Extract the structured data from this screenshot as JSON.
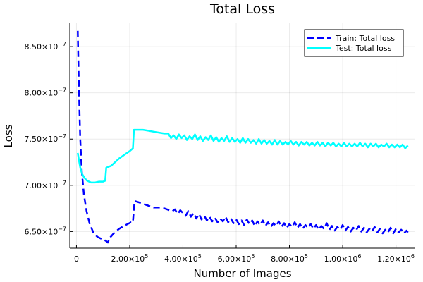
{
  "chart_data": {
    "type": "line",
    "title": "Total Loss",
    "xlabel": "Number of Images",
    "ylabel": "Loss",
    "xlim": [
      -25000,
      1270000
    ],
    "ylim": [
      6.32e-07,
      8.76e-07
    ],
    "x_ticks": [
      {
        "value": 0,
        "mantissa": "0",
        "exponent": ""
      },
      {
        "value": 200000,
        "mantissa": "2.00×10",
        "exponent": "5"
      },
      {
        "value": 400000,
        "mantissa": "4.00×10",
        "exponent": "5"
      },
      {
        "value": 600000,
        "mantissa": "6.00×10",
        "exponent": "5"
      },
      {
        "value": 800000,
        "mantissa": "8.00×10",
        "exponent": "5"
      },
      {
        "value": 1000000,
        "mantissa": "1.00×10",
        "exponent": "6"
      },
      {
        "value": 1200000,
        "mantissa": "1.20×10",
        "exponent": "6"
      }
    ],
    "y_ticks": [
      {
        "value": 6.5e-07,
        "mantissa": "6.50×10",
        "exponent": "−7"
      },
      {
        "value": 7e-07,
        "mantissa": "7.00×10",
        "exponent": "−7"
      },
      {
        "value": 7.5e-07,
        "mantissa": "7.50×10",
        "exponent": "−7"
      },
      {
        "value": 8e-07,
        "mantissa": "8.00×10",
        "exponent": "−7"
      },
      {
        "value": 8.5e-07,
        "mantissa": "8.50×10",
        "exponent": "−7"
      }
    ],
    "grid": true,
    "legend_position": "top-right",
    "series": [
      {
        "name": "Train: Total loss",
        "color": "#0000ff",
        "style": "dashed",
        "points": [
          [
            5000,
            8.67e-07
          ],
          [
            9000,
            8.1e-07
          ],
          [
            14000,
            7.52e-07
          ],
          [
            20000,
            7.15e-07
          ],
          [
            28000,
            6.9e-07
          ],
          [
            38000,
            6.72e-07
          ],
          [
            50000,
            6.58e-07
          ],
          [
            65000,
            6.48e-07
          ],
          [
            80000,
            6.44e-07
          ],
          [
            95000,
            6.42e-07
          ],
          [
            110000,
            6.4e-07
          ],
          [
            118000,
            6.38e-07
          ],
          [
            125000,
            6.43e-07
          ],
          [
            140000,
            6.48e-07
          ],
          [
            160000,
            6.53e-07
          ],
          [
            185000,
            6.57e-07
          ],
          [
            205000,
            6.6e-07
          ],
          [
            212000,
            6.6e-07
          ],
          [
            218000,
            6.83e-07
          ],
          [
            230000,
            6.82e-07
          ],
          [
            250000,
            6.8e-07
          ],
          [
            270000,
            6.78e-07
          ],
          [
            290000,
            6.76e-07
          ],
          [
            310000,
            6.76e-07
          ],
          [
            330000,
            6.75e-07
          ],
          [
            350000,
            6.73e-07
          ],
          [
            360000,
            6.72e-07
          ],
          [
            370000,
            6.74e-07
          ],
          [
            380000,
            6.69e-07
          ],
          [
            390000,
            6.73e-07
          ],
          [
            400000,
            6.7e-07
          ],
          [
            410000,
            6.67e-07
          ],
          [
            420000,
            6.72e-07
          ],
          [
            430000,
            6.66e-07
          ],
          [
            440000,
            6.7e-07
          ],
          [
            450000,
            6.64e-07
          ],
          [
            460000,
            6.69e-07
          ],
          [
            470000,
            6.63e-07
          ],
          [
            480000,
            6.67e-07
          ],
          [
            490000,
            6.62e-07
          ],
          [
            500000,
            6.66e-07
          ],
          [
            510000,
            6.61e-07
          ],
          [
            520000,
            6.65e-07
          ],
          [
            530000,
            6.6e-07
          ],
          [
            540000,
            6.64e-07
          ],
          [
            550000,
            6.61e-07
          ],
          [
            560000,
            6.66e-07
          ],
          [
            570000,
            6.6e-07
          ],
          [
            580000,
            6.64e-07
          ],
          [
            590000,
            6.59e-07
          ],
          [
            600000,
            6.63e-07
          ],
          [
            610000,
            6.58e-07
          ],
          [
            620000,
            6.62e-07
          ],
          [
            630000,
            6.57e-07
          ],
          [
            640000,
            6.63e-07
          ],
          [
            650000,
            6.58e-07
          ],
          [
            660000,
            6.62e-07
          ],
          [
            670000,
            6.56e-07
          ],
          [
            680000,
            6.61e-07
          ],
          [
            690000,
            6.57e-07
          ],
          [
            700000,
            6.62e-07
          ],
          [
            710000,
            6.56e-07
          ],
          [
            720000,
            6.6e-07
          ],
          [
            730000,
            6.55e-07
          ],
          [
            740000,
            6.59e-07
          ],
          [
            750000,
            6.56e-07
          ],
          [
            760000,
            6.61e-07
          ],
          [
            770000,
            6.55e-07
          ],
          [
            780000,
            6.59e-07
          ],
          [
            790000,
            6.54e-07
          ],
          [
            800000,
            6.58e-07
          ],
          [
            810000,
            6.55e-07
          ],
          [
            820000,
            6.6e-07
          ],
          [
            830000,
            6.54e-07
          ],
          [
            840000,
            6.58e-07
          ],
          [
            850000,
            6.53e-07
          ],
          [
            860000,
            6.57e-07
          ],
          [
            870000,
            6.54e-07
          ],
          [
            880000,
            6.58e-07
          ],
          [
            890000,
            6.53e-07
          ],
          [
            900000,
            6.57e-07
          ],
          [
            910000,
            6.52e-07
          ],
          [
            920000,
            6.56e-07
          ],
          [
            930000,
            6.53e-07
          ],
          [
            940000,
            6.59e-07
          ],
          [
            950000,
            6.52e-07
          ],
          [
            960000,
            6.56e-07
          ],
          [
            970000,
            6.51e-07
          ],
          [
            980000,
            6.55e-07
          ],
          [
            990000,
            6.52e-07
          ],
          [
            1000000,
            6.57e-07
          ],
          [
            1010000,
            6.51e-07
          ],
          [
            1020000,
            6.55e-07
          ],
          [
            1030000,
            6.5e-07
          ],
          [
            1040000,
            6.54e-07
          ],
          [
            1050000,
            6.51e-07
          ],
          [
            1060000,
            6.56e-07
          ],
          [
            1070000,
            6.5e-07
          ],
          [
            1080000,
            6.54e-07
          ],
          [
            1090000,
            6.49e-07
          ],
          [
            1100000,
            6.53e-07
          ],
          [
            1110000,
            6.5e-07
          ],
          [
            1120000,
            6.55e-07
          ],
          [
            1130000,
            6.49e-07
          ],
          [
            1140000,
            6.53e-07
          ],
          [
            1150000,
            6.48e-07
          ],
          [
            1160000,
            6.52e-07
          ],
          [
            1170000,
            6.49e-07
          ],
          [
            1180000,
            6.54e-07
          ],
          [
            1190000,
            6.48e-07
          ],
          [
            1200000,
            6.53e-07
          ],
          [
            1210000,
            6.49e-07
          ],
          [
            1220000,
            6.52e-07
          ],
          [
            1230000,
            6.48e-07
          ],
          [
            1240000,
            6.51e-07
          ],
          [
            1245000,
            6.49e-07
          ]
        ]
      },
      {
        "name": "Test: Total loss",
        "color": "#00ffff",
        "style": "solid",
        "points": [
          [
            5000,
            7.35e-07
          ],
          [
            10000,
            7.26e-07
          ],
          [
            15000,
            7.18e-07
          ],
          [
            22000,
            7.12e-07
          ],
          [
            30000,
            7.08e-07
          ],
          [
            40000,
            7.05e-07
          ],
          [
            55000,
            7.03e-07
          ],
          [
            70000,
            7.03e-07
          ],
          [
            85000,
            7.04e-07
          ],
          [
            100000,
            7.04e-07
          ],
          [
            108000,
            7.05e-07
          ],
          [
            112000,
            7.19e-07
          ],
          [
            120000,
            7.2e-07
          ],
          [
            130000,
            7.21e-07
          ],
          [
            145000,
            7.25e-07
          ],
          [
            160000,
            7.29e-07
          ],
          [
            180000,
            7.33e-07
          ],
          [
            200000,
            7.37e-07
          ],
          [
            212000,
            7.4e-07
          ],
          [
            216000,
            7.6e-07
          ],
          [
            230000,
            7.6e-07
          ],
          [
            250000,
            7.6e-07
          ],
          [
            270000,
            7.59e-07
          ],
          [
            290000,
            7.58e-07
          ],
          [
            310000,
            7.57e-07
          ],
          [
            330000,
            7.56e-07
          ],
          [
            345000,
            7.56e-07
          ],
          [
            355000,
            7.51e-07
          ],
          [
            365000,
            7.54e-07
          ],
          [
            375000,
            7.5e-07
          ],
          [
            385000,
            7.55e-07
          ],
          [
            395000,
            7.51e-07
          ],
          [
            405000,
            7.54e-07
          ],
          [
            415000,
            7.49e-07
          ],
          [
            425000,
            7.53e-07
          ],
          [
            435000,
            7.5e-07
          ],
          [
            445000,
            7.55e-07
          ],
          [
            455000,
            7.49e-07
          ],
          [
            465000,
            7.53e-07
          ],
          [
            475000,
            7.48e-07
          ],
          [
            485000,
            7.52e-07
          ],
          [
            495000,
            7.49e-07
          ],
          [
            505000,
            7.54e-07
          ],
          [
            515000,
            7.48e-07
          ],
          [
            525000,
            7.52e-07
          ],
          [
            535000,
            7.47e-07
          ],
          [
            545000,
            7.51e-07
          ],
          [
            555000,
            7.48e-07
          ],
          [
            565000,
            7.53e-07
          ],
          [
            575000,
            7.47e-07
          ],
          [
            585000,
            7.51e-07
          ],
          [
            595000,
            7.47e-07
          ],
          [
            605000,
            7.5e-07
          ],
          [
            615000,
            7.46e-07
          ],
          [
            625000,
            7.51e-07
          ],
          [
            635000,
            7.46e-07
          ],
          [
            645000,
            7.5e-07
          ],
          [
            655000,
            7.46e-07
          ],
          [
            665000,
            7.49e-07
          ],
          [
            675000,
            7.45e-07
          ],
          [
            685000,
            7.5e-07
          ],
          [
            695000,
            7.45e-07
          ],
          [
            705000,
            7.49e-07
          ],
          [
            715000,
            7.45e-07
          ],
          [
            725000,
            7.48e-07
          ],
          [
            735000,
            7.44e-07
          ],
          [
            745000,
            7.49e-07
          ],
          [
            755000,
            7.44e-07
          ],
          [
            765000,
            7.48e-07
          ],
          [
            775000,
            7.44e-07
          ],
          [
            785000,
            7.47e-07
          ],
          [
            795000,
            7.44e-07
          ],
          [
            805000,
            7.48e-07
          ],
          [
            815000,
            7.44e-07
          ],
          [
            825000,
            7.47e-07
          ],
          [
            835000,
            7.43e-07
          ],
          [
            845000,
            7.47e-07
          ],
          [
            855000,
            7.44e-07
          ],
          [
            865000,
            7.47e-07
          ],
          [
            875000,
            7.43e-07
          ],
          [
            885000,
            7.46e-07
          ],
          [
            895000,
            7.43e-07
          ],
          [
            905000,
            7.47e-07
          ],
          [
            915000,
            7.43e-07
          ],
          [
            925000,
            7.46e-07
          ],
          [
            935000,
            7.42e-07
          ],
          [
            945000,
            7.46e-07
          ],
          [
            955000,
            7.43e-07
          ],
          [
            965000,
            7.46e-07
          ],
          [
            975000,
            7.42e-07
          ],
          [
            985000,
            7.45e-07
          ],
          [
            995000,
            7.42e-07
          ],
          [
            1005000,
            7.46e-07
          ],
          [
            1015000,
            7.42e-07
          ],
          [
            1025000,
            7.45e-07
          ],
          [
            1035000,
            7.42e-07
          ],
          [
            1045000,
            7.45e-07
          ],
          [
            1055000,
            7.42e-07
          ],
          [
            1065000,
            7.46e-07
          ],
          [
            1075000,
            7.42e-07
          ],
          [
            1085000,
            7.45e-07
          ],
          [
            1095000,
            7.41e-07
          ],
          [
            1105000,
            7.45e-07
          ],
          [
            1115000,
            7.42e-07
          ],
          [
            1125000,
            7.45e-07
          ],
          [
            1135000,
            7.41e-07
          ],
          [
            1145000,
            7.44e-07
          ],
          [
            1155000,
            7.42e-07
          ],
          [
            1165000,
            7.45e-07
          ],
          [
            1175000,
            7.41e-07
          ],
          [
            1185000,
            7.44e-07
          ],
          [
            1195000,
            7.41e-07
          ],
          [
            1205000,
            7.44e-07
          ],
          [
            1215000,
            7.41e-07
          ],
          [
            1225000,
            7.44e-07
          ],
          [
            1235000,
            7.4e-07
          ],
          [
            1245000,
            7.43e-07
          ]
        ]
      }
    ]
  }
}
